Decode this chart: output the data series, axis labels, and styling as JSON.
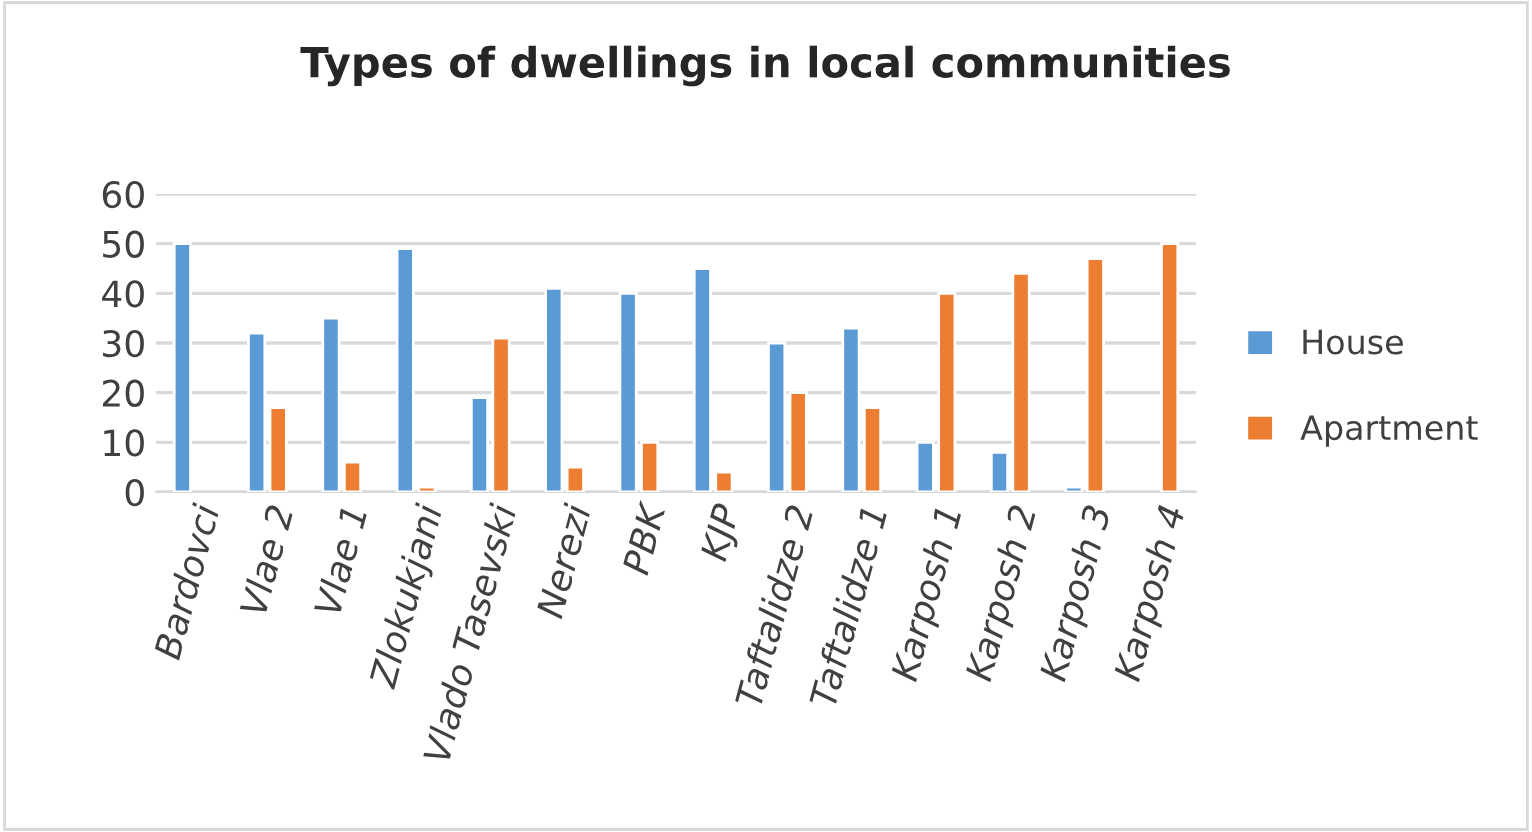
{
  "chart_data": {
    "type": "bar",
    "title": "Types of dwellings in local communities",
    "categories": [
      "Bardovci",
      "Vlae 2",
      "Vlae 1",
      "Zlokukjani",
      "Vlado Tasevski",
      "Nerezi",
      "PBK",
      "KJP",
      "Taftalidze 2",
      "Taftalidze 1",
      "Karposh 1",
      "Karposh 2",
      "Karposh 3",
      "Karposh 4"
    ],
    "series": [
      {
        "name": "House",
        "color": "#5b9bd5",
        "values": [
          50,
          32,
          35,
          49,
          19,
          41,
          40,
          45,
          30,
          33,
          10,
          8,
          1,
          null
        ]
      },
      {
        "name": "Apartment",
        "color": "#ed7d31",
        "values": [
          null,
          17,
          6,
          1,
          31,
          5,
          10,
          4,
          20,
          17,
          40,
          44,
          47,
          50
        ]
      }
    ],
    "ylim": [
      0,
      60
    ],
    "yticks": [
      0,
      10,
      20,
      30,
      40,
      50,
      60
    ],
    "grid": "y",
    "legend": "right"
  }
}
